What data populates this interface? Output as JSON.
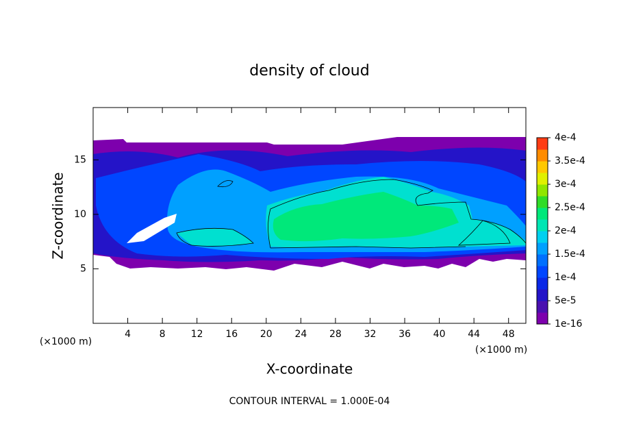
{
  "chart_data": {
    "type": "contour",
    "title": "density of cloud",
    "x_label": "X-coordinate",
    "y_label": "Z-coordinate",
    "x_unit": "(×1000 m)",
    "y_unit": "(×1000 m)",
    "footer": "CONTOUR INTERVAL = 1.000E-04",
    "xlim": [
      0,
      50
    ],
    "ylim": [
      0,
      19.8
    ],
    "xticks": [
      4,
      8,
      12,
      16,
      20,
      24,
      28,
      32,
      36,
      40,
      44,
      48
    ],
    "yticks": [
      5,
      10,
      15
    ],
    "colorbar_ticks": [
      {
        "value": 1e-16,
        "label": "1e-16"
      },
      {
        "value": 5e-05,
        "label": "5e-5"
      },
      {
        "value": 0.0001,
        "label": "1e-4"
      },
      {
        "value": 0.00015,
        "label": "1.5e-4"
      },
      {
        "value": 0.0002,
        "label": "2e-4"
      },
      {
        "value": 0.00025,
        "label": "2.5e-4"
      },
      {
        "value": 0.0003,
        "label": "3e-4"
      },
      {
        "value": 0.00035,
        "label": "3.5e-4"
      },
      {
        "value": 0.0004,
        "label": "4e-4"
      }
    ],
    "colorbar_colors": [
      "#7d00ad",
      "#4a10b0",
      "#2414c8",
      "#0a28e6",
      "#0046ff",
      "#0070ff",
      "#00a0ff",
      "#00d0f0",
      "#00e6b4",
      "#00e87a",
      "#30dc28",
      "#90e600",
      "#e0f000",
      "#ffc800",
      "#ff8c00",
      "#ff3c14"
    ]
  }
}
